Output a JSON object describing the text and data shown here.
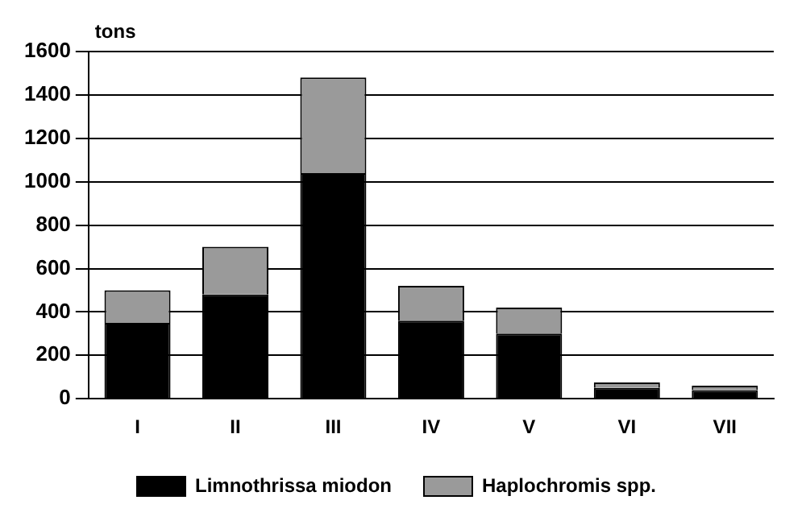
{
  "chart_data": {
    "type": "bar",
    "ylabel": "tons",
    "categories": [
      "I",
      "II",
      "III",
      "IV",
      "V",
      "VI",
      "VII"
    ],
    "stacked": true,
    "series": [
      {
        "name": "Limnothrissa miodon",
        "color": "#000000",
        "values": [
          350,
          480,
          1040,
          360,
          300,
          50,
          40
        ]
      },
      {
        "name": "Haplochromis spp.",
        "color": "#9a9a9a",
        "values": [
          150,
          220,
          440,
          160,
          120,
          25,
          20
        ]
      }
    ],
    "ylim": [
      0,
      1600
    ],
    "yticks": [
      0,
      200,
      400,
      600,
      800,
      1000,
      1200,
      1400,
      1600
    ],
    "grid": "y",
    "legend": "bottom"
  }
}
